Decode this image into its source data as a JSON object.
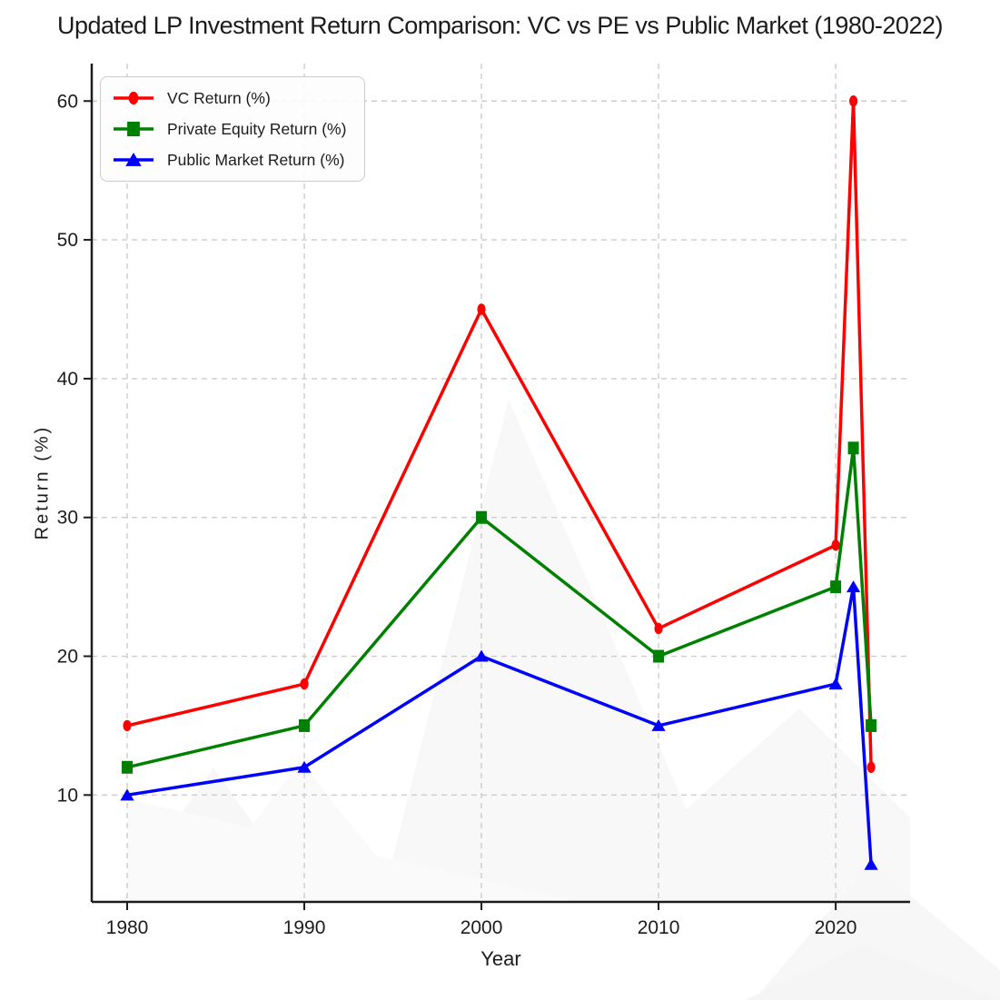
{
  "title": "Updated LP Investment Return Comparison: VC vs PE vs Public Market (1980-2022)",
  "chart_data": {
    "type": "line",
    "title": "Updated LP Investment Return Comparison: VC vs PE vs Public Market (1980-2022)",
    "xlabel": "Year",
    "ylabel": "Return (%)",
    "x": [
      1980,
      1990,
      2000,
      2010,
      2020,
      2021,
      2022
    ],
    "series": [
      {
        "name": "VC Return (%)",
        "color": "#ff0000",
        "marker": "circle",
        "values": [
          15,
          18,
          45,
          22,
          28,
          60,
          12
        ]
      },
      {
        "name": "Private Equity Return (%)",
        "color": "#008000",
        "marker": "square",
        "values": [
          12,
          15,
          30,
          20,
          25,
          35,
          15
        ]
      },
      {
        "name": "Public Market Return (%)",
        "color": "#0000ff",
        "marker": "triangle",
        "values": [
          10,
          12,
          20,
          15,
          18,
          25,
          5
        ]
      }
    ],
    "x_ticks": [
      1980,
      1990,
      2000,
      2010,
      2020
    ],
    "y_ticks": [
      10,
      20,
      30,
      40,
      50,
      60
    ],
    "xlim": [
      1978,
      2024.2
    ],
    "ylim": [
      2.3,
      62.7
    ],
    "grid": true,
    "legend_position": "upper-left"
  },
  "colors": {
    "vc": "#ff0000",
    "private_equity": "#008000",
    "public_market": "#0000ff",
    "grid": "#cccccc",
    "axis": "#1c1c1c",
    "text": "#1c1c1c",
    "watermark": "#f7f7f7"
  }
}
